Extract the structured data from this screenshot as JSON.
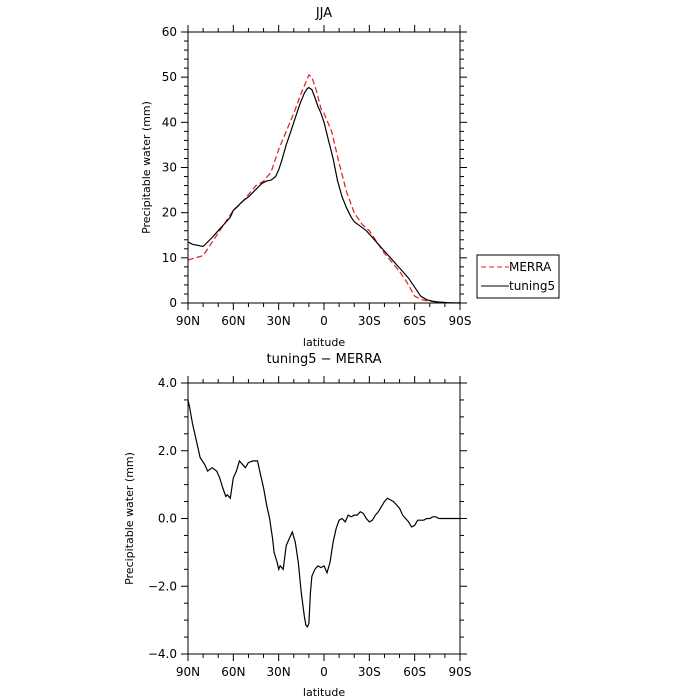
{
  "chart_data": [
    {
      "type": "line",
      "title": "JJA",
      "xlabel": "latitude",
      "ylabel": "Precipitable water (mm)",
      "xlim": [
        90,
        -90
      ],
      "ylim": [
        0,
        60
      ],
      "x_ticks": [
        90,
        60,
        30,
        0,
        -30,
        -60,
        -90
      ],
      "x_tick_labels": [
        "90N",
        "60N",
        "30N",
        "0",
        "30S",
        "60S",
        "90S"
      ],
      "y_ticks": [
        0,
        10,
        20,
        30,
        40,
        50,
        60
      ],
      "y_tick_labels": [
        "0",
        "10",
        "20",
        "30",
        "40",
        "50",
        "60"
      ],
      "legend": {
        "placement": "right",
        "entries": [
          "MERRA",
          "tuning5"
        ]
      },
      "grid": false,
      "series": [
        {
          "name": "MERRA",
          "color": "#e41a1c",
          "dash": "dashed",
          "x": [
            90,
            85,
            80,
            75,
            70,
            65,
            60,
            55,
            50,
            45,
            40,
            35,
            30,
            25,
            20,
            15,
            10,
            8,
            5,
            2,
            0,
            -5,
            -10,
            -15,
            -20,
            -25,
            -30,
            -35,
            -40,
            -45,
            -50,
            -55,
            -60,
            -65,
            -70,
            -75,
            -80,
            -85,
            -90
          ],
          "values": [
            9.5,
            10.0,
            10.5,
            13,
            15.5,
            18,
            20.5,
            22,
            24,
            26,
            27,
            29,
            34,
            38,
            42,
            46.5,
            50.5,
            50.0,
            47,
            43,
            42,
            38,
            31,
            24.5,
            20,
            17.5,
            16,
            13.5,
            11,
            9,
            7,
            4.5,
            1.5,
            0.7,
            0.4,
            0.2,
            0.1,
            0,
            0
          ]
        },
        {
          "name": "tuning5",
          "color": "#000000",
          "dash": "solid",
          "x": [
            90,
            87,
            84,
            80,
            77,
            74,
            70,
            66,
            62,
            60,
            57,
            54,
            50,
            47,
            44,
            41,
            38,
            35,
            32,
            30,
            28,
            25,
            22,
            19,
            16,
            13,
            11,
            10,
            8,
            6,
            4,
            2,
            0,
            -3,
            -6,
            -9,
            -12,
            -15,
            -18,
            -20,
            -24,
            -28,
            -32,
            -36,
            -40,
            -44,
            -48,
            -52,
            -56,
            -60,
            -64,
            -68,
            -72,
            -76,
            -80,
            -84,
            -87,
            -90
          ],
          "values": [
            13.5,
            13.0,
            12.8,
            12.5,
            13.5,
            14.5,
            16.0,
            17.5,
            19.0,
            20.5,
            21.5,
            22.5,
            23.5,
            24.5,
            25.5,
            26.5,
            27.0,
            27.2,
            28.0,
            29.5,
            31.5,
            35.0,
            38.0,
            41.0,
            44.0,
            46.5,
            47.5,
            47.7,
            47.2,
            45.5,
            43.5,
            42.0,
            40.0,
            36.0,
            32.0,
            27.0,
            23.5,
            21.0,
            19.0,
            18.0,
            17.0,
            16.0,
            14.5,
            13.0,
            11.5,
            10.0,
            8.5,
            7.0,
            5.5,
            3.5,
            1.5,
            0.7,
            0.4,
            0.2,
            0.1,
            0.05,
            0.02,
            0.0
          ]
        }
      ]
    },
    {
      "type": "line",
      "title": "tuning5 − MERRA",
      "xlabel": "latitude",
      "ylabel": "Precipitable water (mm)",
      "xlim": [
        90,
        -90
      ],
      "ylim": [
        -4,
        4
      ],
      "x_ticks": [
        90,
        60,
        30,
        0,
        -30,
        -60,
        -90
      ],
      "x_tick_labels": [
        "90N",
        "60N",
        "30N",
        "0",
        "30S",
        "60S",
        "90S"
      ],
      "y_ticks": [
        4,
        2,
        0,
        -2,
        -4
      ],
      "y_tick_labels": [
        "4.0",
        "2.0",
        "0.0",
        "−2.0",
        "−4.0"
      ],
      "grid": false,
      "series": [
        {
          "color": "#000000",
          "dash": "solid",
          "x": [
            90,
            89,
            87,
            85,
            82,
            79,
            77,
            74,
            71,
            69,
            67,
            65,
            64,
            62,
            60,
            58,
            56,
            54,
            52,
            50,
            47,
            44,
            42,
            40,
            38,
            36,
            34,
            33,
            31,
            30,
            29,
            27,
            25,
            23,
            21,
            19,
            17,
            15,
            13,
            12,
            11,
            10,
            9,
            8,
            6,
            4,
            2,
            0,
            -2,
            -4,
            -6,
            -8,
            -10,
            -12,
            -14,
            -16,
            -18,
            -20,
            -22,
            -24,
            -26,
            -28,
            -30,
            -32,
            -34,
            -36,
            -38,
            -40,
            -42,
            -44,
            -46,
            -48,
            -50,
            -52,
            -54,
            -56,
            -58,
            -60,
            -62,
            -64,
            -66,
            -68,
            -70,
            -72,
            -74,
            -76,
            -78,
            -80,
            -82,
            -84,
            -86,
            -88,
            -90
          ],
          "values": [
            3.5,
            3.3,
            2.8,
            2.4,
            1.8,
            1.6,
            1.4,
            1.5,
            1.4,
            1.2,
            0.9,
            0.65,
            0.7,
            0.6,
            1.2,
            1.4,
            1.7,
            1.6,
            1.5,
            1.65,
            1.7,
            1.7,
            1.3,
            0.9,
            0.4,
            0.0,
            -0.6,
            -1.0,
            -1.3,
            -1.5,
            -1.4,
            -1.5,
            -0.8,
            -0.6,
            -0.4,
            -0.7,
            -1.3,
            -2.2,
            -2.9,
            -3.15,
            -3.2,
            -3.1,
            -2.2,
            -1.7,
            -1.5,
            -1.4,
            -1.45,
            -1.4,
            -1.6,
            -1.3,
            -0.7,
            -0.3,
            -0.05,
            0.0,
            -0.1,
            0.1,
            0.05,
            0.1,
            0.1,
            0.2,
            0.15,
            0.0,
            -0.1,
            -0.05,
            0.1,
            0.2,
            0.35,
            0.5,
            0.6,
            0.55,
            0.5,
            0.4,
            0.3,
            0.1,
            0.0,
            -0.1,
            -0.25,
            -0.2,
            -0.05,
            -0.05,
            -0.05,
            0.0,
            0.0,
            0.05,
            0.05,
            0.0,
            0.0,
            0.0,
            0.0,
            0.0,
            0.0,
            0.0,
            0.0
          ]
        }
      ]
    }
  ]
}
